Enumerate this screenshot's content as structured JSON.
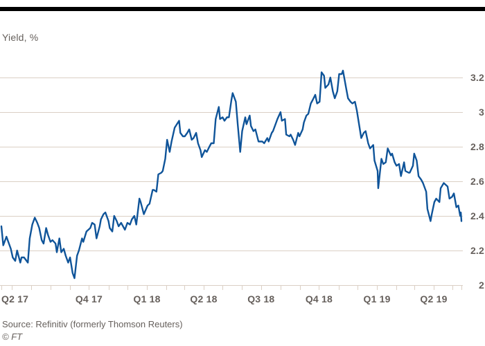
{
  "colors": {
    "background": "#ffffff",
    "top_rule": "#000000",
    "text": "#66605c",
    "grid": "#dbcfc4",
    "line": "#0f5499"
  },
  "header": {
    "title": "Yield, %"
  },
  "footer": {
    "source": "Source: Refinitiv (formerly Thomson Reuters)",
    "credit": "© FT"
  },
  "chart_data": {
    "type": "line",
    "title": "Yield, %",
    "xlabel": "",
    "ylabel": "Yield, %",
    "grid": "horizontal",
    "legend": "none",
    "ylim": [
      2,
      3.3
    ],
    "x_domain": [
      "2017-05-15",
      "2019-05-15"
    ],
    "y_ticks": {
      "position": "right",
      "values": [
        2,
        2.2,
        2.4,
        2.6,
        2.8,
        3,
        3.2
      ],
      "labels": [
        "2",
        "2.2",
        "2.4",
        "2.6",
        "2.8",
        "3",
        "3.2"
      ]
    },
    "x_tick_interval": "monthly",
    "x_labels": [
      {
        "text": "Q2 17",
        "date": "2017-05-15",
        "anchor": "start"
      },
      {
        "text": "Q4 17",
        "date": "2017-10-01",
        "anchor": "middle"
      },
      {
        "text": "Q1 18",
        "date": "2018-01-01",
        "anchor": "middle"
      },
      {
        "text": "Q2 18",
        "date": "2018-04-01",
        "anchor": "middle"
      },
      {
        "text": "Q3 18",
        "date": "2018-07-01",
        "anchor": "middle"
      },
      {
        "text": "Q4 18",
        "date": "2018-10-01",
        "anchor": "middle"
      },
      {
        "text": "Q1 19",
        "date": "2019-01-01",
        "anchor": "middle"
      },
      {
        "text": "Q2 19",
        "date": "2019-04-01",
        "anchor": "middle"
      }
    ],
    "series": [
      {
        "name": "Yield, %",
        "color": "#0f5499",
        "points": [
          [
            "2017-05-15",
            2.34
          ],
          [
            "2017-05-18",
            2.23
          ],
          [
            "2017-05-23",
            2.28
          ],
          [
            "2017-05-26",
            2.25
          ],
          [
            "2017-05-30",
            2.21
          ],
          [
            "2017-06-02",
            2.16
          ],
          [
            "2017-06-06",
            2.14
          ],
          [
            "2017-06-09",
            2.2
          ],
          [
            "2017-06-14",
            2.13
          ],
          [
            "2017-06-16",
            2.16
          ],
          [
            "2017-06-20",
            2.16
          ],
          [
            "2017-06-26",
            2.13
          ],
          [
            "2017-06-29",
            2.27
          ],
          [
            "2017-07-03",
            2.35
          ],
          [
            "2017-07-07",
            2.39
          ],
          [
            "2017-07-11",
            2.36
          ],
          [
            "2017-07-14",
            2.33
          ],
          [
            "2017-07-18",
            2.26
          ],
          [
            "2017-07-21",
            2.24
          ],
          [
            "2017-07-25",
            2.33
          ],
          [
            "2017-07-28",
            2.29
          ],
          [
            "2017-08-01",
            2.25
          ],
          [
            "2017-08-04",
            2.26
          ],
          [
            "2017-08-09",
            2.24
          ],
          [
            "2017-08-11",
            2.19
          ],
          [
            "2017-08-15",
            2.27
          ],
          [
            "2017-08-18",
            2.19
          ],
          [
            "2017-08-22",
            2.21
          ],
          [
            "2017-08-25",
            2.17
          ],
          [
            "2017-08-29",
            2.13
          ],
          [
            "2017-09-01",
            2.16
          ],
          [
            "2017-09-05",
            2.07
          ],
          [
            "2017-09-08",
            2.04
          ],
          [
            "2017-09-12",
            2.17
          ],
          [
            "2017-09-15",
            2.2
          ],
          [
            "2017-09-20",
            2.27
          ],
          [
            "2017-09-22",
            2.25
          ],
          [
            "2017-09-27",
            2.31
          ],
          [
            "2017-10-03",
            2.33
          ],
          [
            "2017-10-06",
            2.36
          ],
          [
            "2017-10-10",
            2.35
          ],
          [
            "2017-10-13",
            2.27
          ],
          [
            "2017-10-18",
            2.34
          ],
          [
            "2017-10-20",
            2.38
          ],
          [
            "2017-10-24",
            2.41
          ],
          [
            "2017-10-27",
            2.42
          ],
          [
            "2017-11-01",
            2.37
          ],
          [
            "2017-11-03",
            2.33
          ],
          [
            "2017-11-07",
            2.31
          ],
          [
            "2017-11-10",
            2.4
          ],
          [
            "2017-11-14",
            2.37
          ],
          [
            "2017-11-17",
            2.34
          ],
          [
            "2017-11-21",
            2.36
          ],
          [
            "2017-11-27",
            2.32
          ],
          [
            "2017-12-01",
            2.36
          ],
          [
            "2017-12-05",
            2.35
          ],
          [
            "2017-12-08",
            2.38
          ],
          [
            "2017-12-12",
            2.4
          ],
          [
            "2017-12-15",
            2.35
          ],
          [
            "2017-12-20",
            2.5
          ],
          [
            "2017-12-22",
            2.48
          ],
          [
            "2017-12-27",
            2.41
          ],
          [
            "2018-01-02",
            2.46
          ],
          [
            "2018-01-05",
            2.47
          ],
          [
            "2018-01-10",
            2.55
          ],
          [
            "2018-01-12",
            2.55
          ],
          [
            "2018-01-16",
            2.54
          ],
          [
            "2018-01-19",
            2.64
          ],
          [
            "2018-01-24",
            2.65
          ],
          [
            "2018-01-26",
            2.66
          ],
          [
            "2018-01-30",
            2.73
          ],
          [
            "2018-02-02",
            2.84
          ],
          [
            "2018-02-06",
            2.77
          ],
          [
            "2018-02-09",
            2.83
          ],
          [
            "2018-02-14",
            2.91
          ],
          [
            "2018-02-21",
            2.95
          ],
          [
            "2018-02-23",
            2.88
          ],
          [
            "2018-02-27",
            2.86
          ],
          [
            "2018-03-02",
            2.86
          ],
          [
            "2018-03-06",
            2.88
          ],
          [
            "2018-03-09",
            2.9
          ],
          [
            "2018-03-13",
            2.84
          ],
          [
            "2018-03-16",
            2.85
          ],
          [
            "2018-03-20",
            2.88
          ],
          [
            "2018-03-23",
            2.82
          ],
          [
            "2018-03-27",
            2.78
          ],
          [
            "2018-03-29",
            2.74
          ],
          [
            "2018-04-03",
            2.78
          ],
          [
            "2018-04-06",
            2.77
          ],
          [
            "2018-04-10",
            2.8
          ],
          [
            "2018-04-13",
            2.82
          ],
          [
            "2018-04-17",
            2.82
          ],
          [
            "2018-04-20",
            2.96
          ],
          [
            "2018-04-25",
            3.03
          ],
          [
            "2018-04-27",
            2.96
          ],
          [
            "2018-05-01",
            2.97
          ],
          [
            "2018-05-04",
            2.95
          ],
          [
            "2018-05-08",
            2.97
          ],
          [
            "2018-05-11",
            2.97
          ],
          [
            "2018-05-15",
            3.07
          ],
          [
            "2018-05-17",
            3.11
          ],
          [
            "2018-05-22",
            3.06
          ],
          [
            "2018-05-25",
            2.93
          ],
          [
            "2018-05-29",
            2.77
          ],
          [
            "2018-06-01",
            2.89
          ],
          [
            "2018-06-06",
            2.97
          ],
          [
            "2018-06-08",
            2.93
          ],
          [
            "2018-06-13",
            2.98
          ],
          [
            "2018-06-15",
            2.92
          ],
          [
            "2018-06-19",
            2.89
          ],
          [
            "2018-06-22",
            2.9
          ],
          [
            "2018-06-27",
            2.83
          ],
          [
            "2018-07-03",
            2.83
          ],
          [
            "2018-07-06",
            2.82
          ],
          [
            "2018-07-11",
            2.85
          ],
          [
            "2018-07-13",
            2.83
          ],
          [
            "2018-07-18",
            2.88
          ],
          [
            "2018-07-20",
            2.89
          ],
          [
            "2018-07-25",
            2.94
          ],
          [
            "2018-07-27",
            2.96
          ],
          [
            "2018-08-01",
            3.0
          ],
          [
            "2018-08-03",
            2.95
          ],
          [
            "2018-08-08",
            2.96
          ],
          [
            "2018-08-10",
            2.87
          ],
          [
            "2018-08-15",
            2.86
          ],
          [
            "2018-08-17",
            2.87
          ],
          [
            "2018-08-21",
            2.84
          ],
          [
            "2018-08-24",
            2.81
          ],
          [
            "2018-08-29",
            2.88
          ],
          [
            "2018-08-31",
            2.86
          ],
          [
            "2018-09-05",
            2.9
          ],
          [
            "2018-09-07",
            2.94
          ],
          [
            "2018-09-11",
            2.98
          ],
          [
            "2018-09-14",
            2.99
          ],
          [
            "2018-09-18",
            3.05
          ],
          [
            "2018-09-21",
            3.07
          ],
          [
            "2018-09-25",
            3.1
          ],
          [
            "2018-09-28",
            3.05
          ],
          [
            "2018-10-02",
            3.06
          ],
          [
            "2018-10-05",
            3.23
          ],
          [
            "2018-10-09",
            3.21
          ],
          [
            "2018-10-11",
            3.14
          ],
          [
            "2018-10-16",
            3.16
          ],
          [
            "2018-10-19",
            3.2
          ],
          [
            "2018-10-23",
            3.12
          ],
          [
            "2018-10-26",
            3.08
          ],
          [
            "2018-10-30",
            3.12
          ],
          [
            "2018-11-02",
            3.22
          ],
          [
            "2018-11-06",
            3.22
          ],
          [
            "2018-11-08",
            3.24
          ],
          [
            "2018-11-13",
            3.14
          ],
          [
            "2018-11-16",
            3.08
          ],
          [
            "2018-11-20",
            3.06
          ],
          [
            "2018-11-23",
            3.05
          ],
          [
            "2018-11-27",
            3.06
          ],
          [
            "2018-11-30",
            3.01
          ],
          [
            "2018-12-04",
            2.92
          ],
          [
            "2018-12-07",
            2.85
          ],
          [
            "2018-12-11",
            2.88
          ],
          [
            "2018-12-14",
            2.89
          ],
          [
            "2018-12-18",
            2.82
          ],
          [
            "2018-12-21",
            2.79
          ],
          [
            "2018-12-26",
            2.81
          ],
          [
            "2018-12-28",
            2.72
          ],
          [
            "2019-01-02",
            2.66
          ],
          [
            "2019-01-03",
            2.56
          ],
          [
            "2019-01-08",
            2.73
          ],
          [
            "2019-01-11",
            2.7
          ],
          [
            "2019-01-15",
            2.71
          ],
          [
            "2019-01-18",
            2.79
          ],
          [
            "2019-01-23",
            2.75
          ],
          [
            "2019-01-25",
            2.76
          ],
          [
            "2019-01-29",
            2.71
          ],
          [
            "2019-02-01",
            2.69
          ],
          [
            "2019-02-05",
            2.7
          ],
          [
            "2019-02-08",
            2.63
          ],
          [
            "2019-02-13",
            2.71
          ],
          [
            "2019-02-15",
            2.66
          ],
          [
            "2019-02-20",
            2.65
          ],
          [
            "2019-02-22",
            2.65
          ],
          [
            "2019-02-27",
            2.69
          ],
          [
            "2019-03-01",
            2.76
          ],
          [
            "2019-03-05",
            2.72
          ],
          [
            "2019-03-08",
            2.63
          ],
          [
            "2019-03-12",
            2.61
          ],
          [
            "2019-03-15",
            2.59
          ],
          [
            "2019-03-20",
            2.54
          ],
          [
            "2019-03-22",
            2.44
          ],
          [
            "2019-03-27",
            2.37
          ],
          [
            "2019-03-29",
            2.41
          ],
          [
            "2019-04-02",
            2.48
          ],
          [
            "2019-04-05",
            2.5
          ],
          [
            "2019-04-10",
            2.48
          ],
          [
            "2019-04-12",
            2.56
          ],
          [
            "2019-04-17",
            2.59
          ],
          [
            "2019-04-23",
            2.57
          ],
          [
            "2019-04-26",
            2.5
          ],
          [
            "2019-04-30",
            2.51
          ],
          [
            "2019-05-03",
            2.53
          ],
          [
            "2019-05-07",
            2.45
          ],
          [
            "2019-05-10",
            2.46
          ],
          [
            "2019-05-13",
            2.4
          ],
          [
            "2019-05-14",
            2.42
          ],
          [
            "2019-05-15",
            2.37
          ]
        ]
      }
    ]
  }
}
